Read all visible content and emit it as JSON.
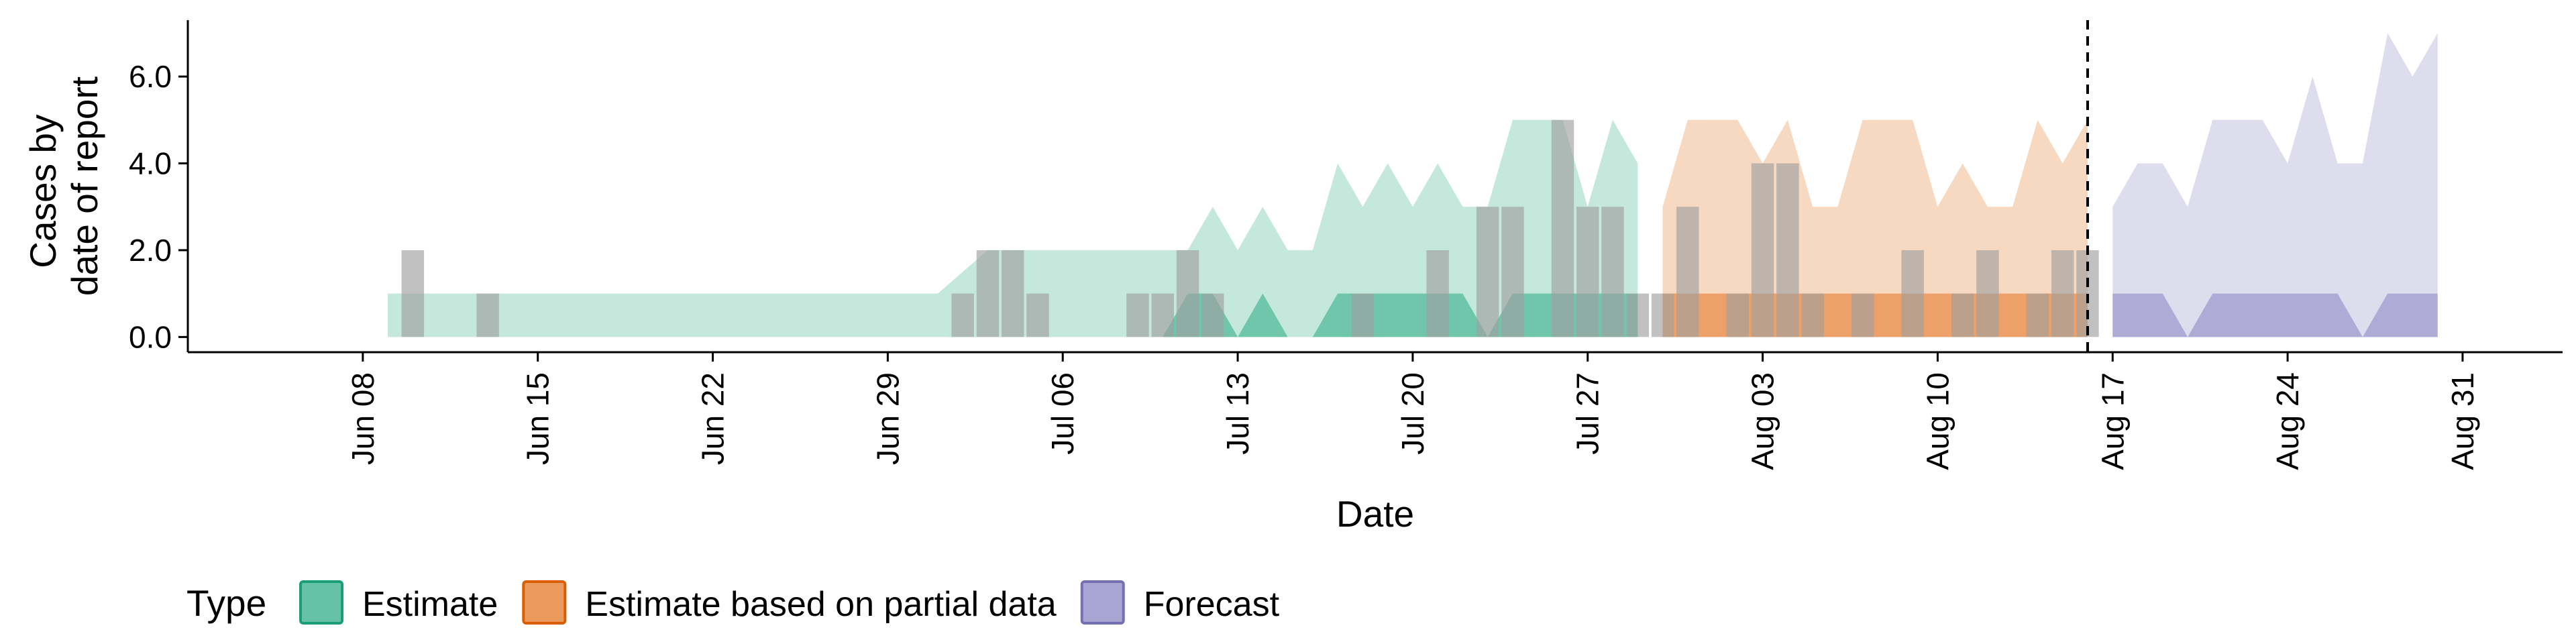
{
  "chart_data": {
    "type": "area",
    "xlabel": "Date",
    "ylabel": [
      "Cases by",
      "date of report"
    ],
    "x_ticks": [
      "Jun 08",
      "Jun 15",
      "Jun 22",
      "Jun 29",
      "Jul 06",
      "Jul 13",
      "Jul 20",
      "Jul 27",
      "Aug 03",
      "Aug 10",
      "Aug 17",
      "Aug 24",
      "Aug 31"
    ],
    "x_tick_dates": [
      "2020-06-08",
      "2020-06-15",
      "2020-06-22",
      "2020-06-29",
      "2020-07-06",
      "2020-07-13",
      "2020-07-20",
      "2020-07-27",
      "2020-08-03",
      "2020-08-10",
      "2020-08-17",
      "2020-08-24",
      "2020-08-31"
    ],
    "y_ticks": [
      "0.0",
      "2.0",
      "4.0",
      "6.0"
    ],
    "xlim": [
      "2020-06-01",
      "2020-09-04"
    ],
    "ylim": [
      -0.35,
      7.3
    ],
    "forecast_start_line": "2020-08-16",
    "grid": false,
    "legend": {
      "title": "Type",
      "position": "bottom-left",
      "entries": [
        {
          "label": "Estimate",
          "fill": "#66c2a5",
          "border": "#1b9e77"
        },
        {
          "label": "Estimate based on partial data",
          "fill": "#eb9a5e",
          "border": "#d95f02"
        },
        {
          "label": "Forecast",
          "fill": "#a9a5d3",
          "border": "#7570b3"
        }
      ]
    },
    "observed_cases": [
      {
        "date": "2020-06-10",
        "value": 2
      },
      {
        "date": "2020-06-13",
        "value": 1
      },
      {
        "date": "2020-07-02",
        "value": 1
      },
      {
        "date": "2020-07-03",
        "value": 2
      },
      {
        "date": "2020-07-04",
        "value": 2
      },
      {
        "date": "2020-07-05",
        "value": 1
      },
      {
        "date": "2020-07-09",
        "value": 1
      },
      {
        "date": "2020-07-10",
        "value": 1
      },
      {
        "date": "2020-07-11",
        "value": 2
      },
      {
        "date": "2020-07-12",
        "value": 1
      },
      {
        "date": "2020-07-18",
        "value": 1
      },
      {
        "date": "2020-07-21",
        "value": 2
      },
      {
        "date": "2020-07-23",
        "value": 3
      },
      {
        "date": "2020-07-24",
        "value": 3
      },
      {
        "date": "2020-07-26",
        "value": 5
      },
      {
        "date": "2020-07-27",
        "value": 3
      },
      {
        "date": "2020-07-28",
        "value": 3
      },
      {
        "date": "2020-07-29",
        "value": 1
      },
      {
        "date": "2020-07-30",
        "value": 1
      },
      {
        "date": "2020-07-31",
        "value": 3
      },
      {
        "date": "2020-08-02",
        "value": 1
      },
      {
        "date": "2020-08-03",
        "value": 4
      },
      {
        "date": "2020-08-04",
        "value": 4
      },
      {
        "date": "2020-08-05",
        "value": 1
      },
      {
        "date": "2020-08-07",
        "value": 1
      },
      {
        "date": "2020-08-09",
        "value": 2
      },
      {
        "date": "2020-08-11",
        "value": 1
      },
      {
        "date": "2020-08-12",
        "value": 2
      },
      {
        "date": "2020-08-14",
        "value": 1
      },
      {
        "date": "2020-08-15",
        "value": 2
      },
      {
        "date": "2020-08-16",
        "value": 2
      }
    ],
    "series": [
      {
        "name": "Estimate",
        "color": "#66c2a5",
        "outer": [
          {
            "date": "2020-06-09",
            "lower": 0,
            "upper": 1
          },
          {
            "date": "2020-07-01",
            "lower": 0,
            "upper": 1
          },
          {
            "date": "2020-07-03",
            "lower": 0,
            "upper": 2
          },
          {
            "date": "2020-07-11",
            "lower": 0,
            "upper": 2
          },
          {
            "date": "2020-07-12",
            "lower": 0,
            "upper": 3
          },
          {
            "date": "2020-07-13",
            "lower": 0,
            "upper": 2
          },
          {
            "date": "2020-07-14",
            "lower": 0,
            "upper": 3
          },
          {
            "date": "2020-07-15",
            "lower": 0,
            "upper": 2
          },
          {
            "date": "2020-07-16",
            "lower": 0,
            "upper": 2
          },
          {
            "date": "2020-07-17",
            "lower": 0,
            "upper": 4
          },
          {
            "date": "2020-07-18",
            "lower": 0,
            "upper": 3
          },
          {
            "date": "2020-07-19",
            "lower": 0,
            "upper": 4
          },
          {
            "date": "2020-07-20",
            "lower": 0,
            "upper": 3
          },
          {
            "date": "2020-07-21",
            "lower": 0,
            "upper": 4
          },
          {
            "date": "2020-07-22",
            "lower": 0,
            "upper": 3
          },
          {
            "date": "2020-07-23",
            "lower": 0,
            "upper": 3
          },
          {
            "date": "2020-07-24",
            "lower": 0,
            "upper": 5
          },
          {
            "date": "2020-07-26",
            "lower": 0,
            "upper": 5
          },
          {
            "date": "2020-07-27",
            "lower": 0,
            "upper": 3
          },
          {
            "date": "2020-07-28",
            "lower": 0,
            "upper": 5
          },
          {
            "date": "2020-07-29",
            "lower": 0,
            "upper": 4
          }
        ],
        "inner": [
          {
            "date": "2020-07-10",
            "lower": 0,
            "upper": 0
          },
          {
            "date": "2020-07-11",
            "lower": 0,
            "upper": 1
          },
          {
            "date": "2020-07-12",
            "lower": 0,
            "upper": 1
          },
          {
            "date": "2020-07-13",
            "lower": 0,
            "upper": 0
          },
          {
            "date": "2020-07-14",
            "lower": 0,
            "upper": 1
          },
          {
            "date": "2020-07-15",
            "lower": 0,
            "upper": 0
          },
          {
            "date": "2020-07-16",
            "lower": 0,
            "upper": 0
          },
          {
            "date": "2020-07-17",
            "lower": 0,
            "upper": 1
          },
          {
            "date": "2020-07-22",
            "lower": 0,
            "upper": 1
          },
          {
            "date": "2020-07-23",
            "lower": 0,
            "upper": 0
          },
          {
            "date": "2020-07-24",
            "lower": 0,
            "upper": 1
          },
          {
            "date": "2020-07-29",
            "lower": 0,
            "upper": 1
          }
        ]
      },
      {
        "name": "Estimate based on partial data",
        "color": "#eb9a5e",
        "outer": [
          {
            "date": "2020-07-30",
            "lower": 0,
            "upper": 3
          },
          {
            "date": "2020-07-31",
            "lower": 0,
            "upper": 5
          },
          {
            "date": "2020-08-02",
            "lower": 0,
            "upper": 5
          },
          {
            "date": "2020-08-03",
            "lower": 0,
            "upper": 4
          },
          {
            "date": "2020-08-04",
            "lower": 0,
            "upper": 5
          },
          {
            "date": "2020-08-05",
            "lower": 0,
            "upper": 3
          },
          {
            "date": "2020-08-06",
            "lower": 0,
            "upper": 3
          },
          {
            "date": "2020-08-07",
            "lower": 0,
            "upper": 5
          },
          {
            "date": "2020-08-09",
            "lower": 0,
            "upper": 5
          },
          {
            "date": "2020-08-10",
            "lower": 0,
            "upper": 3
          },
          {
            "date": "2020-08-11",
            "lower": 0,
            "upper": 4
          },
          {
            "date": "2020-08-12",
            "lower": 0,
            "upper": 3
          },
          {
            "date": "2020-08-13",
            "lower": 0,
            "upper": 3
          },
          {
            "date": "2020-08-14",
            "lower": 0,
            "upper": 5
          },
          {
            "date": "2020-08-15",
            "lower": 0,
            "upper": 4
          },
          {
            "date": "2020-08-16",
            "lower": 0,
            "upper": 5
          }
        ],
        "inner": [
          {
            "date": "2020-07-30",
            "lower": 0,
            "upper": 1
          },
          {
            "date": "2020-08-16",
            "lower": 0,
            "upper": 1
          }
        ]
      },
      {
        "name": "Forecast",
        "color": "#a9a5d3",
        "outer": [
          {
            "date": "2020-08-17",
            "lower": 0,
            "upper": 3
          },
          {
            "date": "2020-08-18",
            "lower": 0,
            "upper": 4
          },
          {
            "date": "2020-08-19",
            "lower": 0,
            "upper": 4
          },
          {
            "date": "2020-08-20",
            "lower": 0,
            "upper": 3
          },
          {
            "date": "2020-08-21",
            "lower": 0,
            "upper": 5
          },
          {
            "date": "2020-08-23",
            "lower": 0,
            "upper": 5
          },
          {
            "date": "2020-08-24",
            "lower": 0,
            "upper": 4
          },
          {
            "date": "2020-08-25",
            "lower": 0,
            "upper": 6
          },
          {
            "date": "2020-08-26",
            "lower": 0,
            "upper": 4
          },
          {
            "date": "2020-08-27",
            "lower": 0,
            "upper": 4
          },
          {
            "date": "2020-08-28",
            "lower": 0,
            "upper": 7
          },
          {
            "date": "2020-08-29",
            "lower": 0,
            "upper": 6
          },
          {
            "date": "2020-08-30",
            "lower": 0,
            "upper": 7
          }
        ],
        "inner": [
          {
            "date": "2020-08-17",
            "lower": 0,
            "upper": 1
          },
          {
            "date": "2020-08-19",
            "lower": 0,
            "upper": 1
          },
          {
            "date": "2020-08-20",
            "lower": 0,
            "upper": 0
          },
          {
            "date": "2020-08-21",
            "lower": 0,
            "upper": 1
          },
          {
            "date": "2020-08-26",
            "lower": 0,
            "upper": 1
          },
          {
            "date": "2020-08-27",
            "lower": 0,
            "upper": 0
          },
          {
            "date": "2020-08-28",
            "lower": 0,
            "upper": 1
          },
          {
            "date": "2020-08-30",
            "lower": 0,
            "upper": 1
          }
        ]
      }
    ]
  }
}
